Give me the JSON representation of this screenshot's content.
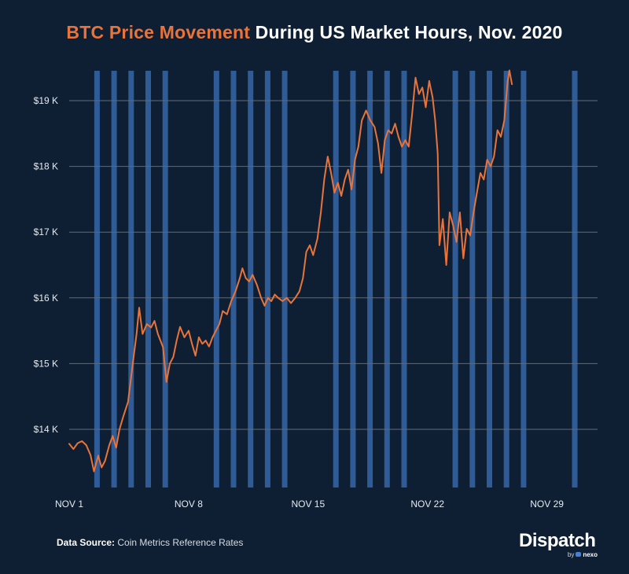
{
  "title": {
    "highlight": "BTC Price Movement",
    "rest": " During US Market Hours, Nov. 2020"
  },
  "colors": {
    "background": "#0f1f33",
    "price_line": "#e8743b",
    "market_hours_band": "#2f5b97",
    "grid": "#5d6b7c",
    "tick_text": "#e6eaef"
  },
  "source": {
    "label": "Data Source:",
    "text": " Coin Metrics Reference Rates"
  },
  "logo": {
    "name": "Dispatch",
    "by": "by",
    "partner": "nexo"
  },
  "chart_data": {
    "type": "line",
    "title": "BTC Price Movement During US Market Hours, Nov. 2020",
    "xlabel": "",
    "ylabel": "",
    "x_unit": "day of November 2020 (fractional)",
    "xlim": [
      1,
      31.3
    ],
    "ylim": [
      13000,
      19500
    ],
    "x_ticks": [
      {
        "value": 1,
        "label": "NOV 1"
      },
      {
        "value": 8,
        "label": "NOV 8"
      },
      {
        "value": 15,
        "label": "NOV 15"
      },
      {
        "value": 22,
        "label": "NOV 22"
      },
      {
        "value": 29,
        "label": "NOV 29"
      }
    ],
    "y_ticks": [
      {
        "value": 14000,
        "label": "$14 K"
      },
      {
        "value": 15000,
        "label": "$15 K"
      },
      {
        "value": 16000,
        "label": "$16 K"
      },
      {
        "value": 17000,
        "label": "$17 K"
      },
      {
        "value": 18000,
        "label": "$18 K"
      },
      {
        "value": 19000,
        "label": "$19 K"
      }
    ],
    "grid": true,
    "market_hours_days": [
      2,
      3,
      4,
      5,
      6,
      9,
      10,
      11,
      12,
      13,
      16,
      17,
      18,
      19,
      20,
      23,
      24,
      25,
      26,
      27,
      30
    ],
    "series": [
      {
        "name": "BTC price (USD)",
        "points": [
          [
            1.0,
            13780
          ],
          [
            1.25,
            13700
          ],
          [
            1.5,
            13790
          ],
          [
            1.75,
            13820
          ],
          [
            2.0,
            13760
          ],
          [
            2.25,
            13610
          ],
          [
            2.45,
            13360
          ],
          [
            2.7,
            13600
          ],
          [
            2.9,
            13420
          ],
          [
            3.1,
            13520
          ],
          [
            3.35,
            13760
          ],
          [
            3.55,
            13900
          ],
          [
            3.75,
            13720
          ],
          [
            3.95,
            14000
          ],
          [
            4.15,
            14180
          ],
          [
            4.45,
            14420
          ],
          [
            4.75,
            15050
          ],
          [
            4.95,
            15450
          ],
          [
            5.1,
            15850
          ],
          [
            5.3,
            15450
          ],
          [
            5.55,
            15600
          ],
          [
            5.8,
            15550
          ],
          [
            6.0,
            15650
          ],
          [
            6.2,
            15450
          ],
          [
            6.5,
            15250
          ],
          [
            6.7,
            14720
          ],
          [
            6.9,
            15000
          ],
          [
            7.1,
            15100
          ],
          [
            7.3,
            15350
          ],
          [
            7.5,
            15560
          ],
          [
            7.75,
            15400
          ],
          [
            8.0,
            15500
          ],
          [
            8.2,
            15300
          ],
          [
            8.4,
            15120
          ],
          [
            8.6,
            15400
          ],
          [
            8.8,
            15300
          ],
          [
            9.0,
            15350
          ],
          [
            9.2,
            15260
          ],
          [
            9.4,
            15400
          ],
          [
            9.6,
            15500
          ],
          [
            9.8,
            15600
          ],
          [
            10.0,
            15800
          ],
          [
            10.25,
            15750
          ],
          [
            10.5,
            15950
          ],
          [
            10.75,
            16100
          ],
          [
            11.0,
            16300
          ],
          [
            11.15,
            16450
          ],
          [
            11.35,
            16300
          ],
          [
            11.55,
            16250
          ],
          [
            11.75,
            16350
          ],
          [
            12.0,
            16200
          ],
          [
            12.25,
            16000
          ],
          [
            12.45,
            15880
          ],
          [
            12.65,
            16000
          ],
          [
            12.85,
            15950
          ],
          [
            13.05,
            16050
          ],
          [
            13.25,
            16000
          ],
          [
            13.5,
            15950
          ],
          [
            13.75,
            16000
          ],
          [
            14.0,
            15920
          ],
          [
            14.25,
            16000
          ],
          [
            14.5,
            16100
          ],
          [
            14.7,
            16300
          ],
          [
            14.9,
            16700
          ],
          [
            15.1,
            16800
          ],
          [
            15.3,
            16650
          ],
          [
            15.55,
            16900
          ],
          [
            15.75,
            17300
          ],
          [
            15.95,
            17800
          ],
          [
            16.15,
            18150
          ],
          [
            16.35,
            17900
          ],
          [
            16.55,
            17600
          ],
          [
            16.75,
            17750
          ],
          [
            16.95,
            17550
          ],
          [
            17.15,
            17800
          ],
          [
            17.35,
            17950
          ],
          [
            17.55,
            17650
          ],
          [
            17.75,
            18100
          ],
          [
            17.95,
            18300
          ],
          [
            18.15,
            18700
          ],
          [
            18.4,
            18850
          ],
          [
            18.65,
            18700
          ],
          [
            18.9,
            18600
          ],
          [
            19.1,
            18350
          ],
          [
            19.3,
            17900
          ],
          [
            19.5,
            18400
          ],
          [
            19.7,
            18550
          ],
          [
            19.9,
            18500
          ],
          [
            20.1,
            18650
          ],
          [
            20.3,
            18450
          ],
          [
            20.5,
            18300
          ],
          [
            20.7,
            18400
          ],
          [
            20.9,
            18300
          ],
          [
            21.1,
            18800
          ],
          [
            21.3,
            19350
          ],
          [
            21.5,
            19100
          ],
          [
            21.7,
            19200
          ],
          [
            21.9,
            18900
          ],
          [
            22.1,
            19300
          ],
          [
            22.3,
            19050
          ],
          [
            22.45,
            18700
          ],
          [
            22.6,
            18200
          ],
          [
            22.7,
            16800
          ],
          [
            22.9,
            17200
          ],
          [
            23.1,
            16500
          ],
          [
            23.3,
            17300
          ],
          [
            23.5,
            17100
          ],
          [
            23.7,
            16850
          ],
          [
            23.9,
            17300
          ],
          [
            24.1,
            16600
          ],
          [
            24.3,
            17050
          ],
          [
            24.5,
            16950
          ],
          [
            24.7,
            17300
          ],
          [
            24.9,
            17600
          ],
          [
            25.1,
            17900
          ],
          [
            25.3,
            17800
          ],
          [
            25.5,
            18100
          ],
          [
            25.7,
            18000
          ],
          [
            25.9,
            18150
          ],
          [
            26.1,
            18550
          ],
          [
            26.3,
            18450
          ],
          [
            26.5,
            18700
          ],
          [
            26.7,
            19300
          ],
          [
            26.8,
            19460
          ],
          [
            26.95,
            19250
          ]
        ]
      }
    ]
  }
}
